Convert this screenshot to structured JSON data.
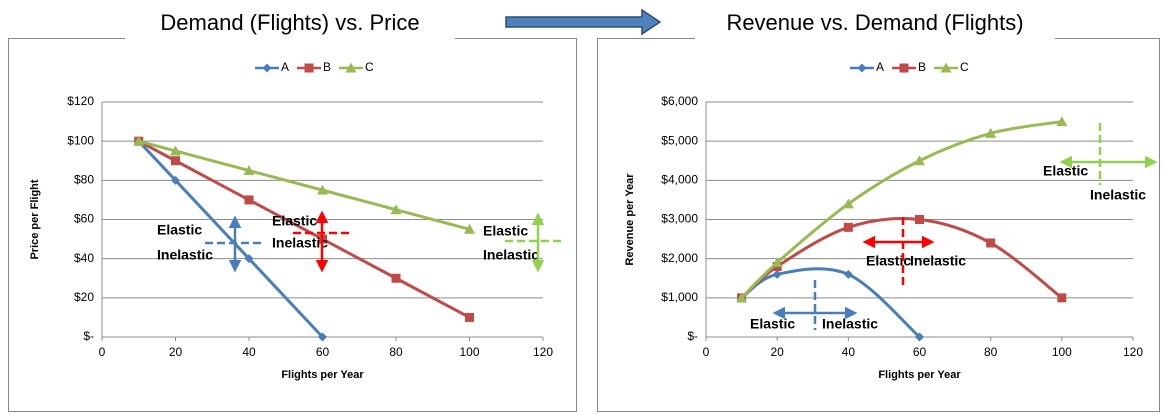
{
  "chart_data": [
    {
      "type": "line",
      "title": "Demand (Flights) vs. Price",
      "xlabel": "Flights per Year",
      "ylabel": "Price per Flight",
      "x": [
        10,
        20,
        40,
        60,
        80,
        100
      ],
      "series": [
        {
          "name": "A",
          "color": "#4a7ebb",
          "marker": "diamond",
          "values": [
            100,
            80,
            40,
            0,
            null,
            null
          ]
        },
        {
          "name": "B",
          "color": "#be4b48",
          "marker": "square",
          "values": [
            100,
            90,
            70,
            50,
            30,
            10
          ]
        },
        {
          "name": "C",
          "color": "#98b954",
          "marker": "triangle",
          "values": [
            100,
            95,
            85,
            75,
            65,
            55
          ]
        }
      ],
      "xlim": [
        0,
        120
      ],
      "xticks": [
        0,
        20,
        40,
        60,
        80,
        100,
        120
      ],
      "ylim": [
        0,
        120
      ],
      "yticks": [
        {
          "value": 0,
          "label": "$-"
        },
        {
          "value": 20,
          "label": "$20"
        },
        {
          "value": 40,
          "label": "$40"
        },
        {
          "value": 60,
          "label": "$60"
        },
        {
          "value": 80,
          "label": "$80"
        },
        {
          "value": 100,
          "label": "$100"
        },
        {
          "value": 120,
          "label": "$120"
        }
      ],
      "grid": true,
      "legend": "top",
      "smooth": false,
      "annotations": [
        "Elastic",
        "Inelastic",
        "Elastic",
        "Inelastic",
        "Elastic",
        "Inelastic"
      ]
    },
    {
      "type": "line",
      "title": "Revenue vs. Demand (Flights)",
      "xlabel": "Flights per Year",
      "ylabel": "Revenue per Year",
      "x": [
        10,
        20,
        40,
        60,
        80,
        100
      ],
      "series": [
        {
          "name": "A",
          "color": "#4a7ebb",
          "marker": "diamond",
          "values": [
            1000,
            1600,
            1600,
            0,
            null,
            null
          ]
        },
        {
          "name": "B",
          "color": "#be4b48",
          "marker": "square",
          "values": [
            1000,
            1800,
            2800,
            3000,
            2400,
            1000
          ]
        },
        {
          "name": "C",
          "color": "#98b954",
          "marker": "triangle",
          "values": [
            1000,
            1900,
            3400,
            4500,
            5200,
            5500
          ]
        }
      ],
      "xlim": [
        0,
        120
      ],
      "xticks": [
        0,
        20,
        40,
        60,
        80,
        100,
        120
      ],
      "ylim": [
        0,
        6000
      ],
      "yticks": [
        {
          "value": 0,
          "label": "$-"
        },
        {
          "value": 1000,
          "label": "$1,000"
        },
        {
          "value": 2000,
          "label": "$2,000"
        },
        {
          "value": 3000,
          "label": "$3,000"
        },
        {
          "value": 4000,
          "label": "$4,000"
        },
        {
          "value": 5000,
          "label": "$5,000"
        },
        {
          "value": 6000,
          "label": "$6,000"
        }
      ],
      "grid": true,
      "legend": "top",
      "smooth": true,
      "annotations": [
        "Elastic",
        "Inelastic",
        "Elastic",
        "Inelastic",
        "Elastic",
        "Inelastic"
      ]
    }
  ]
}
